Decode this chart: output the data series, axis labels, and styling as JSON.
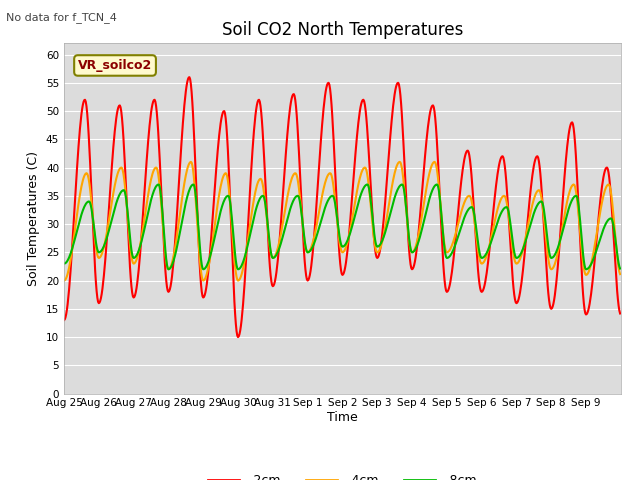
{
  "title": "Soil CO2 North Temperatures",
  "no_data_text": "No data for f_TCN_4",
  "ylabel": "Soil Temperatures (C)",
  "xlabel": "Time",
  "legend_label": "VR_soilco2",
  "ylim": [
    0,
    62
  ],
  "yticks": [
    0,
    5,
    10,
    15,
    20,
    25,
    30,
    35,
    40,
    45,
    50,
    55,
    60
  ],
  "colors": {
    "2cm": "#FF0000",
    "4cm": "#FFA500",
    "8cm": "#00BB00"
  },
  "bg_color": "#DCDCDC",
  "line_width": 1.5,
  "x_labels": [
    "Aug 25",
    "Aug 26",
    "Aug 27",
    "Aug 28",
    "Aug 29",
    "Aug 30",
    "Aug 31",
    "Sep 1",
    "Sep 2",
    "Sep 3",
    "Sep 4",
    "Sep 5",
    "Sep 6",
    "Sep 7",
    "Sep 8",
    "Sep 9"
  ],
  "n_days": 16,
  "peaks_2cm": [
    52,
    51,
    52,
    56,
    50,
    52,
    53,
    55,
    52,
    55,
    51,
    43,
    42,
    42,
    48,
    40
  ],
  "troughs_2cm": [
    13,
    16,
    17,
    18,
    17,
    10,
    19,
    20,
    21,
    24,
    22,
    18,
    18,
    16,
    15,
    14
  ],
  "peaks_4cm": [
    39,
    40,
    40,
    41,
    39,
    38,
    39,
    39,
    40,
    41,
    41,
    35,
    35,
    36,
    37,
    37
  ],
  "troughs_4cm": [
    20,
    24,
    23,
    22,
    20,
    20,
    24,
    25,
    25,
    25,
    25,
    25,
    23,
    23,
    22,
    21
  ],
  "peaks_8cm": [
    34,
    36,
    37,
    37,
    35,
    35,
    35,
    35,
    37,
    37,
    37,
    33,
    33,
    34,
    35,
    31
  ],
  "troughs_8cm": [
    23,
    25,
    24,
    22,
    22,
    22,
    24,
    25,
    26,
    26,
    25,
    24,
    24,
    24,
    24,
    22
  ]
}
